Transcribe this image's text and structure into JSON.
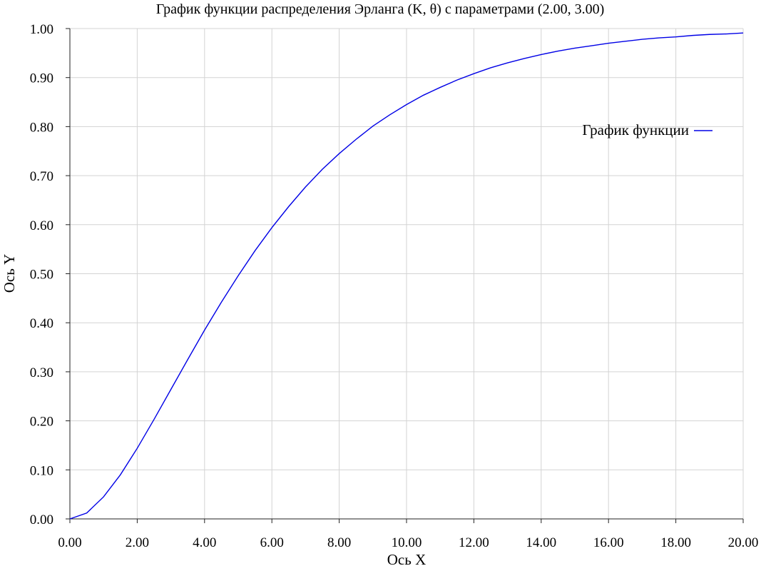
{
  "chart_data": {
    "type": "line",
    "title": "График функции распределения Эрланга (K, θ) с параметрами (2.00, 3.00)",
    "xlabel": "Ось X",
    "ylabel": "Ось Y",
    "xlim": [
      0,
      20
    ],
    "ylim": [
      0,
      1
    ],
    "grid": true,
    "legend_position": "top-right",
    "x_ticks": [
      "0.00",
      "2.00",
      "4.00",
      "6.00",
      "8.00",
      "10.00",
      "12.00",
      "14.00",
      "16.00",
      "18.00",
      "20.00"
    ],
    "y_ticks": [
      "0.00",
      "0.10",
      "0.20",
      "0.30",
      "0.40",
      "0.50",
      "0.60",
      "0.70",
      "0.80",
      "0.90",
      "1.00"
    ],
    "series": [
      {
        "name": "График функции",
        "color": "#0000e6",
        "x": [
          0,
          0.5,
          1,
          1.5,
          2,
          2.5,
          3,
          3.5,
          4,
          4.5,
          5,
          5.5,
          6,
          6.5,
          7,
          7.5,
          8,
          8.5,
          9,
          9.5,
          10,
          10.5,
          11,
          11.5,
          12,
          12.5,
          13,
          13.5,
          14,
          14.5,
          15,
          15.5,
          16,
          16.5,
          17,
          17.5,
          18,
          18.5,
          19,
          19.5,
          20
        ],
        "y": [
          0,
          0.012,
          0.045,
          0.09,
          0.144,
          0.203,
          0.264,
          0.325,
          0.385,
          0.442,
          0.496,
          0.547,
          0.594,
          0.637,
          0.677,
          0.713,
          0.745,
          0.774,
          0.801,
          0.824,
          0.845,
          0.864,
          0.88,
          0.895,
          0.908,
          0.92,
          0.93,
          0.939,
          0.947,
          0.954,
          0.96,
          0.965,
          0.97,
          0.974,
          0.978,
          0.981,
          0.983,
          0.986,
          0.988,
          0.989,
          0.991
        ]
      }
    ]
  }
}
